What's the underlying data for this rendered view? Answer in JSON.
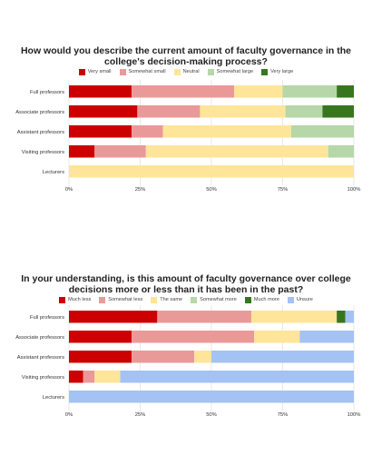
{
  "palette": {
    "dark_red": "#cc0000",
    "light_red": "#ea9999",
    "yellow": "#ffe599",
    "light_green": "#b6d7a8",
    "dark_green": "#38761d",
    "light_blue": "#a4c2f4"
  },
  "chart_data": [
    {
      "type": "bar",
      "orientation": "horizontal",
      "stacked": "percent",
      "title": "How would you describe the current amount of faculty governance in the college's decision-making process?",
      "legend_position": "top",
      "categories": [
        "Full professors",
        "Associate professors",
        "Assistant professors",
        "Visiting professors",
        "Lecturers"
      ],
      "x_ticks": [
        "0%",
        "25%",
        "50%",
        "75%",
        "100%"
      ],
      "xlim": [
        0,
        100
      ],
      "grid": true,
      "series": [
        {
          "name": "Very small",
          "color": "#cc0000",
          "values": [
            22,
            24,
            22,
            9,
            0
          ]
        },
        {
          "name": "Somewhat small",
          "color": "#ea9999",
          "values": [
            36,
            22,
            11,
            18,
            0
          ]
        },
        {
          "name": "Neutral",
          "color": "#ffe599",
          "values": [
            17,
            30,
            45,
            64,
            100
          ]
        },
        {
          "name": "Somewhat large",
          "color": "#b6d7a8",
          "values": [
            19,
            13,
            22,
            9,
            0
          ]
        },
        {
          "name": "Very large",
          "color": "#38761d",
          "values": [
            6,
            11,
            0,
            0,
            0
          ]
        }
      ]
    },
    {
      "type": "bar",
      "orientation": "horizontal",
      "stacked": "percent",
      "title": "In your understanding, is this amount of faculty governance over college decisions more or less than it has been in the past?",
      "legend_position": "top",
      "categories": [
        "Full professors",
        "Associate professors",
        "Assistant professors",
        "Visiting professors",
        "Lecturers"
      ],
      "x_ticks": [
        "0%",
        "25%",
        "50%",
        "75%",
        "100%"
      ],
      "xlim": [
        0,
        100
      ],
      "grid": true,
      "series": [
        {
          "name": "Much less",
          "color": "#cc0000",
          "values": [
            31,
            22,
            22,
            5,
            0
          ]
        },
        {
          "name": "Somewhat less",
          "color": "#ea9999",
          "values": [
            33,
            43,
            22,
            4,
            0
          ]
        },
        {
          "name": "The same",
          "color": "#ffe599",
          "values": [
            30,
            16,
            6,
            9,
            0
          ]
        },
        {
          "name": "Somewhat more",
          "color": "#b6d7a8",
          "values": [
            0,
            0,
            0,
            0,
            0
          ]
        },
        {
          "name": "Much more",
          "color": "#38761d",
          "values": [
            3,
            0,
            0,
            0,
            0
          ]
        },
        {
          "name": "Unsure",
          "color": "#a4c2f4",
          "values": [
            3,
            19,
            50,
            82,
            100
          ]
        }
      ]
    }
  ]
}
